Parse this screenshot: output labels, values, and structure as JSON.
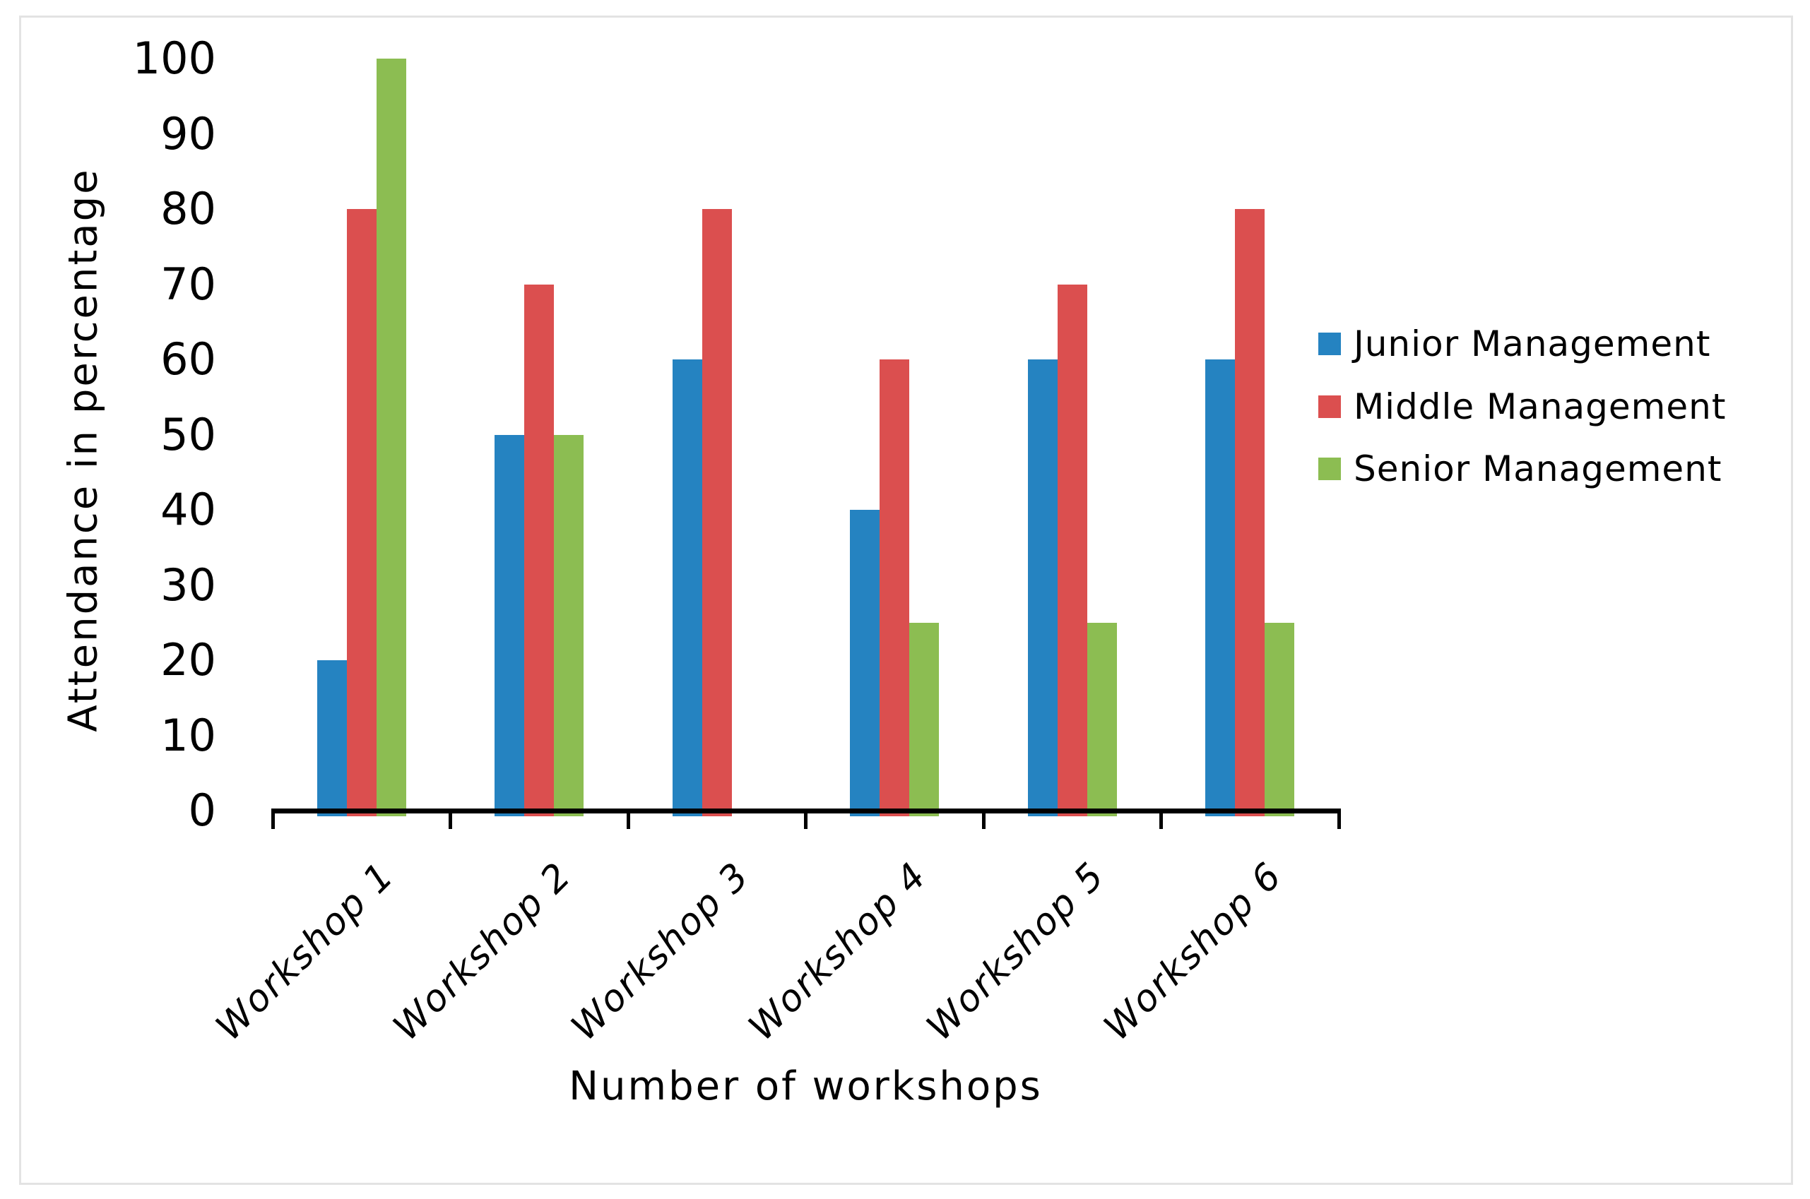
{
  "chart_data": {
    "type": "bar",
    "title": "",
    "categories": [
      "Workshop 1",
      "Workshop 2",
      "Workshop 3",
      "Workshop 4",
      "Workshop 5",
      "Workshop 6"
    ],
    "series": [
      {
        "name": "Junior Management",
        "color": "#2583C1",
        "values": [
          20,
          50,
          60,
          40,
          60,
          60
        ]
      },
      {
        "name": "Middle Management",
        "color": "#DB4F4F",
        "values": [
          80,
          70,
          80,
          60,
          70,
          80
        ]
      },
      {
        "name": "Senior Management",
        "color": "#8CBD52",
        "values": [
          100,
          50,
          0,
          25,
          25,
          25
        ]
      }
    ],
    "xlabel": "Number of workshops",
    "ylabel": "Attendance in percentage",
    "ylim": [
      0,
      100
    ],
    "ytick_step": 10,
    "grid": false,
    "legend_position": "right"
  },
  "colors": {
    "axis": "#000000",
    "text": "#000000",
    "frame": "#e3e3e3",
    "background": "#ffffff"
  }
}
